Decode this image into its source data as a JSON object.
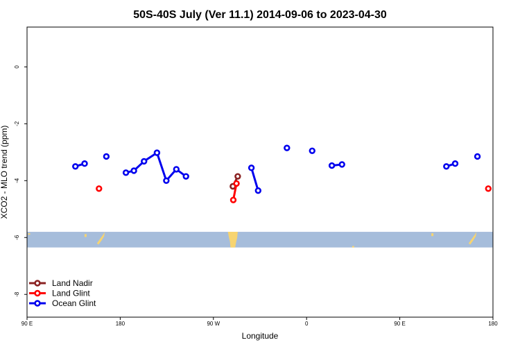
{
  "chart_data": {
    "type": "line",
    "title": "50S-40S July (Ver 11.1)   2014-09-06 to 2023-04-30",
    "xlabel": "Longitude",
    "ylabel": "XCO2 - MLO trend (ppm)",
    "x_ticks": [
      {
        "value": 90,
        "label": "90 E"
      },
      {
        "value": 180,
        "label": "180"
      },
      {
        "value": 270,
        "label": "90 W"
      },
      {
        "value": 360,
        "label": "0"
      },
      {
        "value": 450,
        "label": "90 E"
      },
      {
        "value": 540,
        "label": "180"
      }
    ],
    "y_ticks": [
      {
        "value": 0,
        "label": "0"
      },
      {
        "value": -2,
        "label": "-2"
      },
      {
        "value": -4,
        "label": "-4"
      },
      {
        "value": -6,
        "label": "-6"
      },
      {
        "value": -8,
        "label": "-8"
      }
    ],
    "xlim": [
      90,
      540
    ],
    "ylim": [
      -8.8,
      1.4
    ],
    "legend_position": "bottom-left",
    "colors": {
      "land_nadir": "#8b2323",
      "land_glint": "#ff0000",
      "ocean_glint": "#0000ee",
      "map_ocean": "#a6bddb",
      "map_land": "#f7d470"
    },
    "map_strip": {
      "ymin": -6.35,
      "ymax": -5.8
    },
    "series": [
      {
        "name": "Land Nadir",
        "color_key": "land_nadir",
        "segments": [
          [
            [
              288.8,
              -4.2
            ],
            [
              293.5,
              -3.85
            ]
          ]
        ]
      },
      {
        "name": "Land Glint",
        "color_key": "land_glint",
        "segments": [
          [
            [
              159.5,
              -4.28
            ]
          ],
          [
            [
              289.2,
              -4.68
            ],
            [
              292.3,
              -4.1
            ]
          ],
          [
            [
              535.5,
              -4.28
            ]
          ]
        ]
      },
      {
        "name": "Ocean Glint",
        "color_key": "ocean_glint",
        "segments": [
          [
            [
              136.7,
              -3.5
            ],
            [
              145.6,
              -3.4
            ]
          ],
          [
            [
              166.6,
              -3.15
            ]
          ],
          [
            [
              185.5,
              -3.72
            ],
            [
              193.2,
              -3.65
            ],
            [
              203.0,
              -3.32
            ],
            [
              215.5,
              -3.02
            ],
            [
              224.5,
              -4.0
            ],
            [
              234.2,
              -3.6
            ],
            [
              243.5,
              -3.85
            ]
          ],
          [
            [
              306.7,
              -3.55
            ],
            [
              313.2,
              -4.35
            ]
          ],
          [
            [
              341.0,
              -2.85
            ]
          ],
          [
            [
              365.4,
              -2.95
            ]
          ],
          [
            [
              384.4,
              -3.47
            ],
            [
              394.2,
              -3.43
            ]
          ],
          [
            [
              495.0,
              -3.5
            ],
            [
              503.5,
              -3.4
            ]
          ],
          [
            [
              525.0,
              -3.15
            ]
          ]
        ]
      }
    ]
  }
}
